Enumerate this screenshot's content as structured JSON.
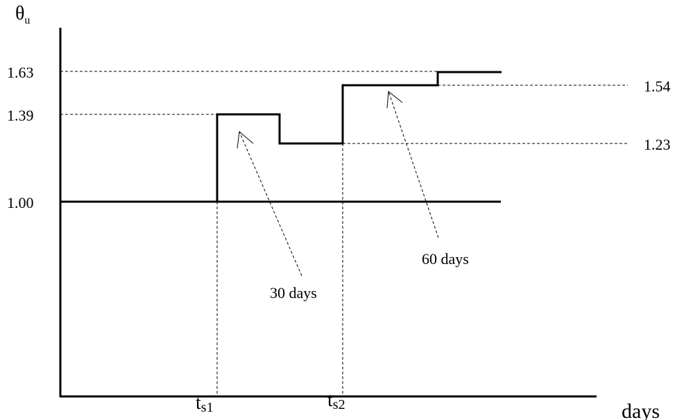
{
  "y_axis_label": {
    "main": "θ",
    "sub": "u"
  },
  "x_axis_label": "days",
  "levels": {
    "left": [
      "1.63",
      "1.39",
      "1.00"
    ],
    "right": [
      "1.54",
      "1.23"
    ]
  },
  "time_marks": [
    {
      "main": "t",
      "sub": "s1"
    },
    {
      "main": "t",
      "sub": "s2"
    }
  ],
  "annotations": [
    "30 days",
    "60 days"
  ]
}
